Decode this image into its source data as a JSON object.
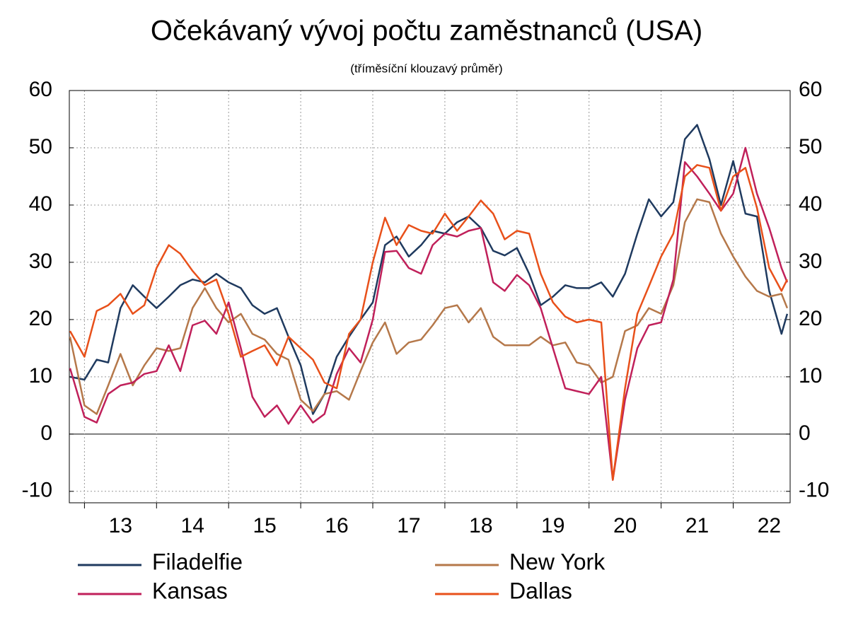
{
  "chart_data": {
    "type": "line",
    "title": "Očekávaný vývoj počtu zaměstnanců (USA)",
    "subtitle": "(tříměsíční klouzavý průměr)",
    "x": [
      12.8,
      13,
      13.17,
      13.33,
      13.5,
      13.67,
      13.83,
      14,
      14.17,
      14.33,
      14.5,
      14.67,
      14.83,
      15,
      15.17,
      15.33,
      15.5,
      15.67,
      15.83,
      16,
      16.17,
      16.33,
      16.5,
      16.67,
      16.83,
      17,
      17.17,
      17.33,
      17.5,
      17.67,
      17.83,
      18,
      18.17,
      18.33,
      18.5,
      18.67,
      18.83,
      19,
      19.17,
      19.33,
      19.5,
      19.67,
      19.83,
      20,
      20.17,
      20.33,
      20.5,
      20.67,
      20.83,
      21,
      21.17,
      21.33,
      21.5,
      21.67,
      21.83,
      22,
      22.17,
      22.33,
      22.5,
      22.67,
      22.75
    ],
    "xlim": [
      12.79,
      22.79
    ],
    "xticks": [
      {
        "value": 13.5,
        "label": "13"
      },
      {
        "value": 14.5,
        "label": "14"
      },
      {
        "value": 15.5,
        "label": "15"
      },
      {
        "value": 16.5,
        "label": "16"
      },
      {
        "value": 17.5,
        "label": "17"
      },
      {
        "value": 18.5,
        "label": "18"
      },
      {
        "value": 19.5,
        "label": "19"
      },
      {
        "value": 20.5,
        "label": "20"
      },
      {
        "value": 21.5,
        "label": "21"
      },
      {
        "value": 22.5,
        "label": "22"
      }
    ],
    "xminorticks": [
      13,
      14,
      15,
      16,
      17,
      18,
      19,
      20,
      21,
      22
    ],
    "ylim": [
      -12,
      60
    ],
    "yticks": [
      -10,
      0,
      10,
      20,
      30,
      40,
      50,
      60
    ],
    "grid": true,
    "series": [
      {
        "name": "Filadelfie",
        "color": "#1f3a5f",
        "values": [
          10,
          9.5,
          13,
          12.5,
          22,
          26,
          24,
          22,
          24,
          26,
          27,
          26.5,
          28,
          26.5,
          25.5,
          22.5,
          21,
          22,
          17,
          12,
          3.5,
          7,
          13.5,
          17,
          20,
          23,
          33,
          34.5,
          31,
          33,
          35.5,
          35,
          37,
          38,
          36,
          32,
          31.2,
          32.5,
          28,
          22.5,
          24,
          26,
          25.5,
          25.5,
          26.5,
          24,
          28,
          35,
          41,
          38,
          40.5,
          51.5,
          54,
          48,
          40,
          47.7,
          38.5,
          38,
          25,
          17.5,
          21
        ]
      },
      {
        "name": "New York",
        "color": "#b5784a",
        "values": [
          17,
          5,
          3.5,
          8.5,
          14,
          8.5,
          12,
          15,
          14.5,
          15,
          22,
          25.5,
          22,
          19.5,
          21,
          17.5,
          16.5,
          14,
          13,
          6,
          4,
          7,
          7.5,
          6,
          11,
          16,
          19.5,
          14,
          16,
          16.5,
          19,
          22,
          22.5,
          19.5,
          22,
          17,
          15.5,
          15.5,
          15.5,
          17,
          15.5,
          16,
          12.5,
          12,
          9,
          10,
          18,
          19,
          22,
          21,
          26,
          37,
          41,
          40.5,
          35,
          31,
          27.5,
          25,
          24,
          24.5,
          22
        ]
      },
      {
        "name": "Kansas",
        "color": "#c0205a",
        "values": [
          11.5,
          3,
          2,
          7,
          8.5,
          9,
          10.5,
          11,
          15.5,
          11,
          19,
          19.8,
          17.5,
          23,
          15,
          6.5,
          3,
          5,
          1.8,
          5,
          2,
          3.5,
          10.5,
          15,
          12.5,
          20,
          31.8,
          32,
          29,
          28,
          33,
          35,
          34.5,
          35.5,
          36,
          26.5,
          25,
          27.8,
          26,
          22,
          15,
          8,
          7.5,
          7,
          10,
          -8,
          6,
          15,
          19,
          19.5,
          27,
          47.5,
          45,
          42,
          39,
          42,
          50,
          42,
          36,
          29,
          26.5
        ]
      },
      {
        "name": "Dallas",
        "color": "#e8501a",
        "values": [
          18,
          13.5,
          21.5,
          22.5,
          24.5,
          21,
          22.5,
          29,
          33,
          31.5,
          28.5,
          26,
          27,
          21,
          13.5,
          14.5,
          15.5,
          12,
          17,
          15,
          13,
          9,
          8,
          17.5,
          20,
          30,
          37.8,
          33,
          36.5,
          35.5,
          35,
          38.5,
          35.5,
          38,
          40.8,
          38.5,
          34,
          35.5,
          35,
          28,
          23,
          20.5,
          19.5,
          20,
          19.5,
          -8,
          8,
          21,
          25.8,
          31,
          35,
          45,
          47,
          46.5,
          39,
          45,
          46.5,
          39.5,
          29,
          25,
          27
        ]
      }
    ]
  }
}
